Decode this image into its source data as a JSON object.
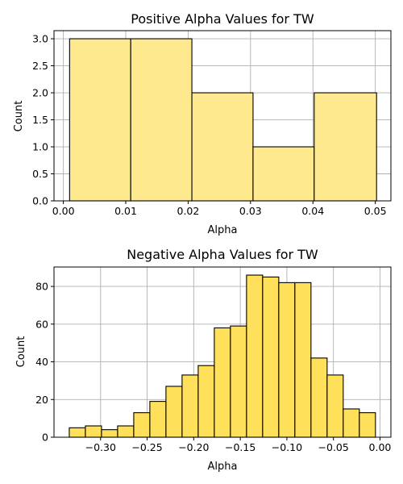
{
  "chart_data": [
    {
      "type": "bar",
      "title": "Positive Alpha Values for TW",
      "xlabel": "Alpha",
      "ylabel": "Count",
      "bin_edges": [
        0.001,
        0.0108,
        0.0206,
        0.0304,
        0.0402,
        0.0502
      ],
      "values": [
        3,
        3,
        2,
        1,
        2
      ],
      "xlim": [
        -0.0015,
        0.0525
      ],
      "ylim": [
        0,
        3.15
      ],
      "xticks": [
        0.0,
        0.01,
        0.02,
        0.03,
        0.04,
        0.05
      ],
      "xtick_labels": [
        "0.00",
        "0.01",
        "0.02",
        "0.03",
        "0.04",
        "0.05"
      ],
      "yticks": [
        0,
        0.5,
        1.0,
        1.5,
        2.0,
        2.5,
        3.0
      ],
      "ytick_labels": [
        "0.0",
        "0.5",
        "1.0",
        "1.5",
        "2.0",
        "2.5",
        "3.0"
      ],
      "grid": true,
      "bar_color": "#ffe98f",
      "edge_color": "#000000",
      "grid_color": "#b0b0b0"
    },
    {
      "type": "bar",
      "title": "Negative Alpha Values for TW",
      "xlabel": "Alpha",
      "ylabel": "Count",
      "bin_edges": [
        -0.3336,
        -0.3163,
        -0.299,
        -0.2817,
        -0.2644,
        -0.2471,
        -0.2298,
        -0.2125,
        -0.1952,
        -0.1779,
        -0.1606,
        -0.1433,
        -0.126,
        -0.1087,
        -0.0914,
        -0.0741,
        -0.0568,
        -0.0395,
        -0.0222,
        -0.0049
      ],
      "values": [
        5,
        6,
        4,
        6,
        13,
        19,
        27,
        33,
        38,
        58,
        59,
        86,
        85,
        82,
        82,
        42,
        33,
        15,
        13
      ],
      "xlim": [
        -0.35,
        0.0117
      ],
      "ylim": [
        0,
        90.3
      ],
      "xticks": [
        -0.3,
        -0.25,
        -0.2,
        -0.15,
        -0.1,
        -0.05,
        0.0
      ],
      "xtick_labels": [
        "−0.30",
        "−0.25",
        "−0.20",
        "−0.15",
        "−0.10",
        "−0.05",
        "0.00"
      ],
      "yticks": [
        0,
        20,
        40,
        60,
        80
      ],
      "ytick_labels": [
        "0",
        "20",
        "40",
        "60",
        "80"
      ],
      "grid": true,
      "bar_color": "#ffe05a",
      "edge_color": "#000000",
      "grid_color": "#b0b0b0"
    }
  ]
}
